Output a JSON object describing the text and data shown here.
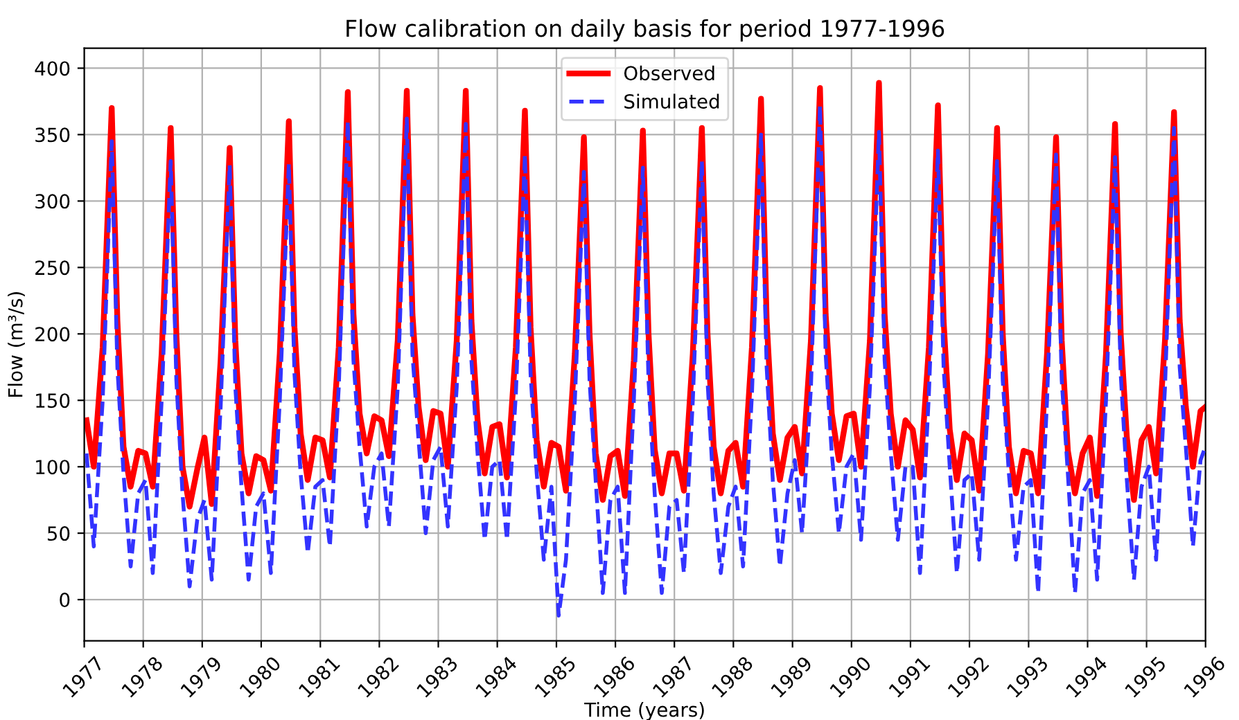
{
  "chart_data": {
    "type": "line",
    "title": "Flow calibration on daily basis for period 1977-1996",
    "xlabel": "Time (years)",
    "ylabel": "Flow (m³/s)",
    "x": [
      "1977-01-15",
      "1977-03-01",
      "1977-04-25",
      "1977-06-20",
      "1977-07-25",
      "1977-09-01",
      "1977-10-15",
      "1977-12-01",
      "1978-01-15",
      "1978-03-01",
      "1978-04-25",
      "1978-06-20",
      "1978-07-25",
      "1978-09-01",
      "1978-10-15",
      "1978-12-01",
      "1979-01-15",
      "1979-03-01",
      "1979-04-25",
      "1979-06-20",
      "1979-07-25",
      "1979-09-01",
      "1979-10-15",
      "1979-12-01",
      "1980-01-15",
      "1980-03-01",
      "1980-04-25",
      "1980-06-20",
      "1980-07-25",
      "1980-09-01",
      "1980-10-15",
      "1980-12-01",
      "1981-01-15",
      "1981-03-01",
      "1981-04-25",
      "1981-06-20",
      "1981-07-25",
      "1981-09-01",
      "1981-10-15",
      "1981-12-01",
      "1982-01-15",
      "1982-03-01",
      "1982-04-25",
      "1982-06-20",
      "1982-07-25",
      "1982-09-01",
      "1982-10-15",
      "1982-12-01",
      "1983-01-15",
      "1983-03-01",
      "1983-04-25",
      "1983-06-20",
      "1983-07-25",
      "1983-09-01",
      "1983-10-15",
      "1983-12-01",
      "1984-01-15",
      "1984-03-01",
      "1984-04-25",
      "1984-06-20",
      "1984-07-25",
      "1984-09-01",
      "1984-10-15",
      "1984-12-01",
      "1985-01-15",
      "1985-03-01",
      "1985-04-25",
      "1985-06-20",
      "1985-07-25",
      "1985-09-01",
      "1985-10-15",
      "1985-12-01",
      "1986-01-15",
      "1986-03-01",
      "1986-04-25",
      "1986-06-20",
      "1986-07-25",
      "1986-09-01",
      "1986-10-15",
      "1986-12-01",
      "1987-01-15",
      "1987-03-01",
      "1987-04-25",
      "1987-06-20",
      "1987-07-25",
      "1987-09-01",
      "1987-10-15",
      "1987-12-01",
      "1988-01-15",
      "1988-03-01",
      "1988-04-25",
      "1988-06-20",
      "1988-07-25",
      "1988-09-01",
      "1988-10-15",
      "1988-12-01",
      "1989-01-15",
      "1989-03-01",
      "1989-04-25",
      "1989-06-20",
      "1989-07-25",
      "1989-09-01",
      "1989-10-15",
      "1989-12-01",
      "1990-01-15",
      "1990-03-01",
      "1990-04-25",
      "1990-06-20",
      "1990-07-25",
      "1990-09-01",
      "1990-10-15",
      "1990-12-01",
      "1991-01-15",
      "1991-03-01",
      "1991-04-25",
      "1991-06-20",
      "1991-07-25",
      "1991-09-01",
      "1991-10-15",
      "1991-12-01",
      "1992-01-15",
      "1992-03-01",
      "1992-04-25",
      "1992-06-20",
      "1992-07-25",
      "1992-09-01",
      "1992-10-15",
      "1992-12-01",
      "1993-01-15",
      "1993-03-01",
      "1993-04-25",
      "1993-06-20",
      "1993-07-25",
      "1993-09-01",
      "1993-10-15",
      "1993-12-01",
      "1994-01-15",
      "1994-03-01",
      "1994-04-25",
      "1994-06-20",
      "1994-07-25",
      "1994-09-01",
      "1994-10-15",
      "1994-12-01",
      "1995-01-15",
      "1995-03-01",
      "1995-04-25",
      "1995-06-20",
      "1995-07-25",
      "1995-09-01",
      "1995-10-15",
      "1995-12-01",
      "1995-12-31"
    ],
    "series": [
      {
        "name": "Observed",
        "color": "#ff0000",
        "line_style": "solid",
        "values": [
          135,
          100,
          190,
          370,
          210,
          115,
          85,
          112,
          110,
          85,
          185,
          355,
          200,
          100,
          70,
          98,
          122,
          72,
          180,
          340,
          195,
          110,
          80,
          108,
          105,
          82,
          185,
          360,
          205,
          125,
          90,
          122,
          120,
          92,
          190,
          382,
          215,
          140,
          110,
          138,
          135,
          108,
          195,
          383,
          215,
          145,
          105,
          142,
          140,
          100,
          195,
          383,
          210,
          135,
          95,
          130,
          132,
          92,
          190,
          368,
          205,
          120,
          85,
          118,
          115,
          82,
          185,
          348,
          200,
          110,
          75,
          108,
          112,
          78,
          180,
          353,
          200,
          113,
          80,
          110,
          110,
          82,
          185,
          355,
          200,
          115,
          80,
          112,
          118,
          85,
          190,
          377,
          210,
          125,
          90,
          122,
          130,
          95,
          195,
          385,
          215,
          140,
          105,
          138,
          140,
          100,
          195,
          389,
          215,
          140,
          100,
          135,
          128,
          92,
          190,
          372,
          210,
          128,
          90,
          125,
          120,
          82,
          185,
          355,
          200,
          115,
          80,
          112,
          110,
          80,
          185,
          348,
          195,
          112,
          80,
          110,
          122,
          78,
          185,
          358,
          200,
          122,
          75,
          120,
          130,
          95,
          195,
          367,
          210,
          145,
          100,
          142,
          145
        ]
      },
      {
        "name": "Simulated",
        "color": "#3333ff",
        "line_style": "dashed",
        "values": [
          110,
          40,
          150,
          345,
          175,
          95,
          25,
          80,
          90,
          20,
          150,
          330,
          165,
          80,
          10,
          60,
          75,
          15,
          145,
          327,
          160,
          85,
          15,
          70,
          80,
          20,
          150,
          328,
          170,
          95,
          35,
          85,
          90,
          40,
          160,
          360,
          180,
          115,
          55,
          100,
          110,
          55,
          160,
          362,
          185,
          120,
          50,
          105,
          115,
          55,
          160,
          358,
          180,
          110,
          45,
          100,
          105,
          45,
          155,
          335,
          170,
          95,
          30,
          85,
          -12,
          30,
          150,
          322,
          165,
          90,
          5,
          75,
          85,
          5,
          150,
          325,
          165,
          80,
          5,
          70,
          75,
          20,
          150,
          330,
          165,
          80,
          20,
          70,
          85,
          25,
          155,
          350,
          175,
          90,
          25,
          80,
          105,
          50,
          160,
          372,
          185,
          110,
          50,
          100,
          110,
          45,
          160,
          352,
          180,
          110,
          45,
          100,
          100,
          20,
          155,
          338,
          175,
          100,
          20,
          90,
          95,
          30,
          150,
          330,
          165,
          95,
          30,
          85,
          90,
          5,
          150,
          335,
          165,
          95,
          5,
          80,
          90,
          15,
          150,
          333,
          170,
          90,
          15,
          85,
          100,
          30,
          160,
          355,
          175,
          115,
          40,
          105,
          115
        ]
      }
    ],
    "xlim": [
      "1977",
      "1996"
    ],
    "xticks": [
      "1977",
      "1978",
      "1979",
      "1980",
      "1981",
      "1982",
      "1983",
      "1984",
      "1985",
      "1986",
      "1987",
      "1988",
      "1989",
      "1990",
      "1991",
      "1992",
      "1993",
      "1994",
      "1995",
      "1996"
    ],
    "ylim": [
      -31,
      415
    ],
    "yticks": [
      0,
      50,
      100,
      150,
      200,
      250,
      300,
      350,
      400
    ],
    "grid": true,
    "legend": "top",
    "marker": "none"
  }
}
